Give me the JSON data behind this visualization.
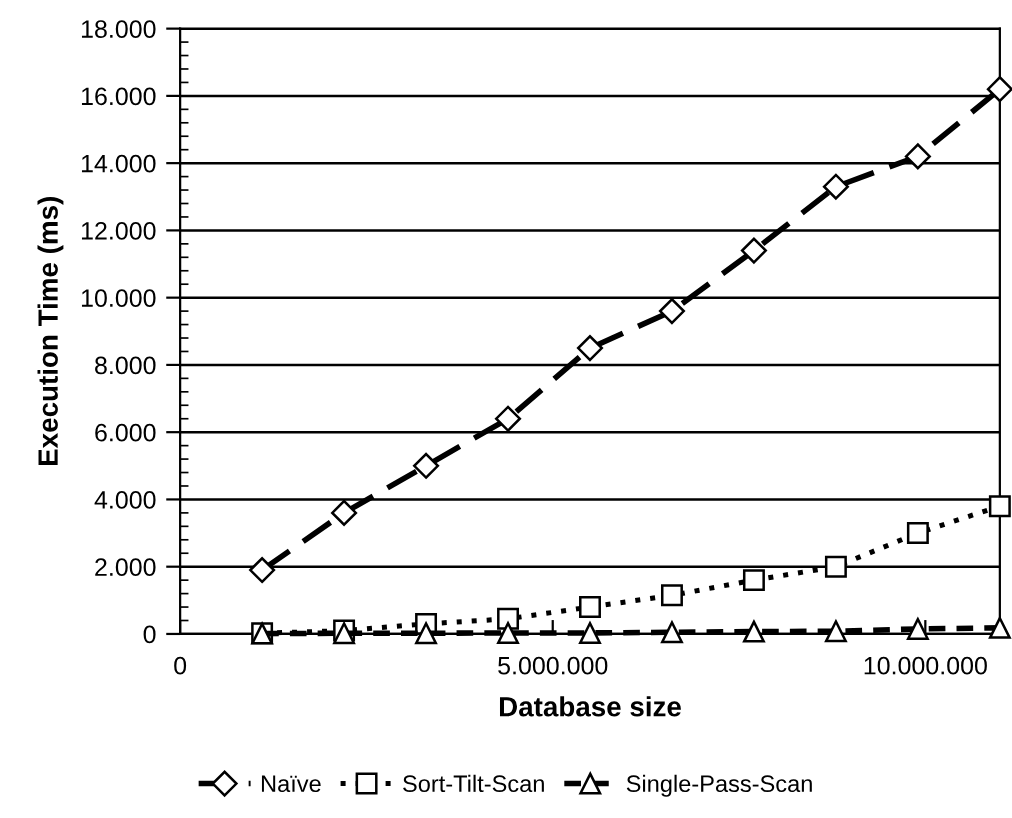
{
  "chart_data": {
    "type": "line",
    "xlabel": "Database size",
    "ylabel": "Execution Time (ms)",
    "x": [
      1100000,
      2200000,
      3300000,
      4400000,
      5500000,
      6600000,
      7700000,
      8800000,
      9900000,
      11000000
    ],
    "series": [
      {
        "name": "Naïve",
        "color": "#000000",
        "marker": "diamond",
        "line_style": "dashed",
        "values": [
          1900,
          3600,
          5000,
          6400,
          8500,
          9600,
          11400,
          13300,
          14200,
          16200
        ]
      },
      {
        "name": "Sort-Tilt-Scan",
        "color": "#000000",
        "marker": "square",
        "line_style": "dotted",
        "values": [
          20,
          100,
          300,
          450,
          800,
          1150,
          1600,
          2000,
          3000,
          3800
        ]
      },
      {
        "name": "Single-Pass-Scan",
        "color": "#000000",
        "marker": "triangle",
        "line_style": "dashed",
        "values": [
          10,
          20,
          20,
          30,
          30,
          50,
          70,
          80,
          150,
          180
        ]
      }
    ],
    "xlim": [
      0,
      11000000
    ],
    "ylim": [
      0,
      18000
    ],
    "xticks": [
      {
        "value": 0,
        "label": "0"
      },
      {
        "value": 5000000,
        "label": "5.000.000"
      },
      {
        "value": 10000000,
        "label": "10.000.000"
      }
    ],
    "yticks": [
      {
        "value": 0,
        "label": "0"
      },
      {
        "value": 2000,
        "label": "2.000"
      },
      {
        "value": 4000,
        "label": "4.000"
      },
      {
        "value": 6000,
        "label": "6.000"
      },
      {
        "value": 8000,
        "label": "8.000"
      },
      {
        "value": 10000,
        "label": "10.000"
      },
      {
        "value": 12000,
        "label": "12.000"
      },
      {
        "value": 14000,
        "label": "14.000"
      },
      {
        "value": 16000,
        "label": "16.000"
      },
      {
        "value": 18000,
        "label": "18.000"
      }
    ],
    "grid": "y",
    "legend": "bottom"
  }
}
